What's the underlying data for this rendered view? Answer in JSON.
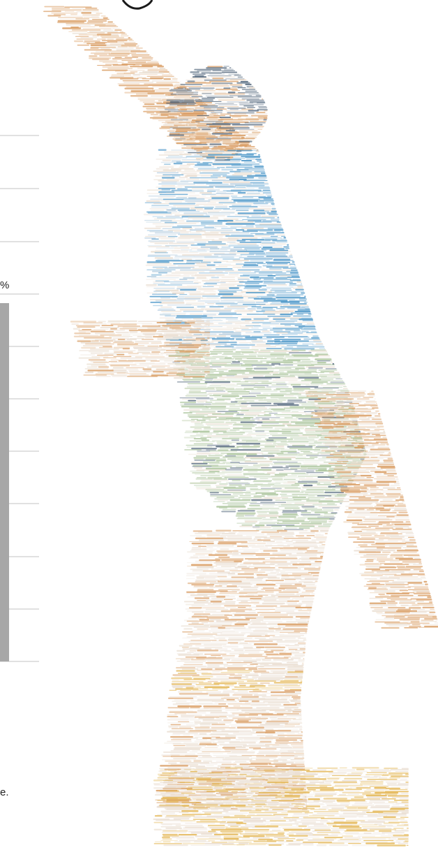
{
  "labels": {
    "percent_fragment": "%",
    "period_fragment": "e."
  },
  "artwork": {
    "icon": "basketball-player-figure-icon",
    "palette": {
      "skin": "#d89a5e",
      "shirt": "#3f8fc4",
      "dark": "#4d6278",
      "shorts": "#a9c39a",
      "gold": "#e2b24a",
      "pale": "#e9ddd0"
    }
  },
  "colors": {
    "gridline": "#cfcfcf",
    "bar": "#a7a7a7",
    "background": "#ffffff"
  }
}
